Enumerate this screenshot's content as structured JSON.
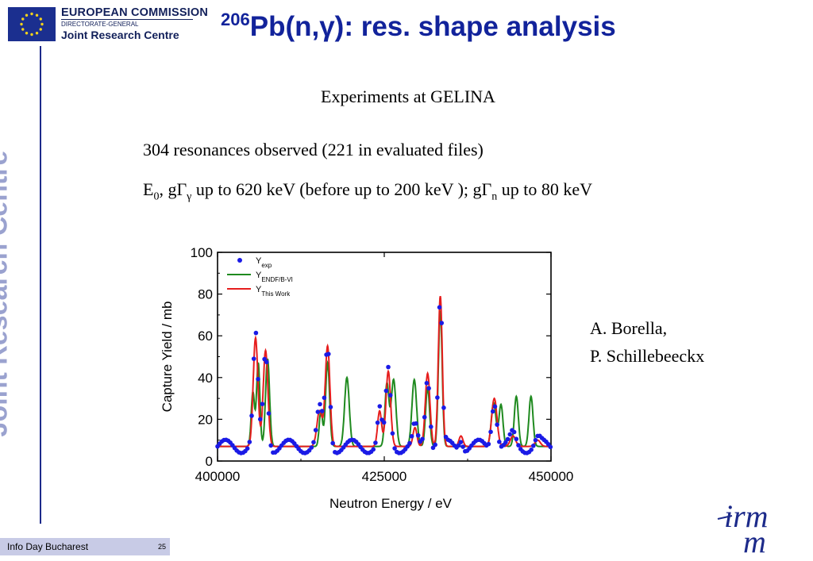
{
  "header": {
    "org_name": "EUROPEAN COMMISSION",
    "org_dg": "DIRECTORATE-GENERAL",
    "org_jrc": "Joint Research Centre",
    "side_text": "Joint Research Centre"
  },
  "slide": {
    "title_sup": "206",
    "title_main": "Pb(n,γ): res. shape analysis",
    "subtitle": "Experiments at GELINA",
    "line1": "304 resonances observed (221 in evaluated files)",
    "line2_a": "E",
    "line2_sub0": "0",
    "line2_b": ", gΓ",
    "line2_subg": "γ",
    "line2_c": " up to 620 keV (before up to 200 keV );  gΓ",
    "line2_subn": "n",
    "line2_d": " up to 80 keV",
    "author1": "A. Borella,",
    "author2": "P. Schillebeeckx"
  },
  "footer": {
    "label": "Info Day Bucharest",
    "page": "25",
    "logo_text": "irmm"
  },
  "colors": {
    "title": "#12239b",
    "exp": "#1a1ae6",
    "endf": "#1f8a1f",
    "thiswork": "#e61e1e"
  },
  "chart_data": {
    "type": "scatter",
    "xlabel": "Neutron Energy / eV",
    "ylabel": "Capture Yield  / mb",
    "xlim": [
      400000,
      450000
    ],
    "ylim": [
      0,
      100
    ],
    "xticks": [
      "400000",
      "425000",
      "450000"
    ],
    "yticks": [
      "0",
      "20",
      "40",
      "60",
      "80",
      "100"
    ],
    "legend_position": "top-left",
    "legend": [
      {
        "label": "Y",
        "sub": "exp",
        "kind": "points",
        "color": "#1a1ae6"
      },
      {
        "label": "Y",
        "sub": "ENDF/B-VI",
        "kind": "line",
        "color": "#1f8a1f"
      },
      {
        "label": "Y",
        "sub": "This Work",
        "kind": "line",
        "color": "#e61e1e"
      }
    ],
    "baseline": 7,
    "series": [
      {
        "name": "Y This Work",
        "peaks": [
          {
            "x": 405700,
            "h": 52,
            "w": 350
          },
          {
            "x": 407200,
            "h": 46,
            "w": 350
          },
          {
            "x": 415300,
            "h": 17,
            "w": 400
          },
          {
            "x": 416500,
            "h": 48,
            "w": 350
          },
          {
            "x": 424300,
            "h": 17,
            "w": 300
          },
          {
            "x": 425600,
            "h": 36,
            "w": 350
          },
          {
            "x": 429600,
            "h": 9,
            "w": 300
          },
          {
            "x": 431500,
            "h": 35,
            "w": 350
          },
          {
            "x": 433400,
            "h": 72,
            "w": 300
          },
          {
            "x": 436500,
            "h": 5,
            "w": 300
          },
          {
            "x": 441500,
            "h": 23,
            "w": 400
          },
          {
            "x": 444300,
            "h": 5,
            "w": 400
          },
          {
            "x": 448000,
            "h": 3,
            "w": 400
          }
        ]
      },
      {
        "name": "Y ENDF/B-VI",
        "peaks": [
          {
            "x": 405300,
            "h": 26,
            "w": 250
          },
          {
            "x": 406100,
            "h": 40,
            "w": 250
          },
          {
            "x": 407500,
            "h": 42,
            "w": 300
          },
          {
            "x": 415500,
            "h": 17,
            "w": 250
          },
          {
            "x": 416500,
            "h": 40,
            "w": 300
          },
          {
            "x": 419400,
            "h": 33,
            "w": 350
          },
          {
            "x": 425400,
            "h": 30,
            "w": 300
          },
          {
            "x": 426400,
            "h": 32,
            "w": 350
          },
          {
            "x": 429500,
            "h": 32,
            "w": 350
          },
          {
            "x": 431500,
            "h": 28,
            "w": 300
          },
          {
            "x": 433400,
            "h": 65,
            "w": 280
          },
          {
            "x": 441400,
            "h": 21,
            "w": 350
          },
          {
            "x": 442500,
            "h": 20,
            "w": 300
          },
          {
            "x": 444800,
            "h": 24,
            "w": 300
          },
          {
            "x": 447000,
            "h": 24,
            "w": 300
          }
        ]
      },
      {
        "name": "Y exp",
        "x_start": 400000,
        "x_end": 450000,
        "step": 320
      }
    ]
  }
}
